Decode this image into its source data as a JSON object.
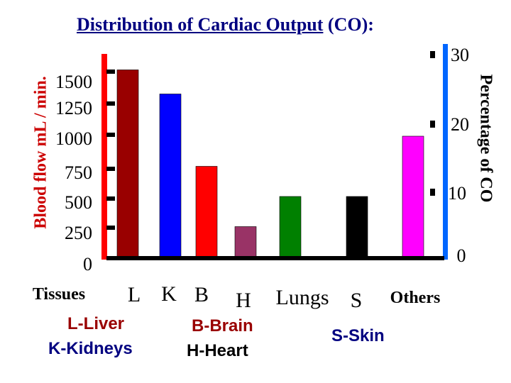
{
  "chart_data": {
    "type": "bar",
    "title_main": "Distribution of Cardiac Output",
    "title_suffix": " (CO):",
    "ylabel_left": "Blood flow mL / min.",
    "ylabel_right": "Percentage of CO",
    "x_axis_label": "Tissues",
    "categories": [
      "L",
      "K",
      "B",
      "H",
      "Lungs",
      "S",
      "Others"
    ],
    "left_ticks": [
      "0",
      "250",
      "500",
      "750",
      "1000",
      "1250",
      "1500"
    ],
    "right_ticks": [
      "0",
      "10",
      "20",
      "30"
    ],
    "right_ylim": [
      0,
      30
    ],
    "bars": [
      {
        "tissue": "L",
        "value": 1550,
        "color": "#990000"
      },
      {
        "tissue": "K",
        "value": 1350,
        "color": "#0000ff"
      },
      {
        "tissue": "B",
        "value": 750,
        "color": "#ff0000"
      },
      {
        "tissue": "H",
        "value": 250,
        "color": "#993366"
      },
      {
        "tissue": "",
        "value": 500,
        "color": "#008000"
      },
      {
        "tissue": "S",
        "value": 500,
        "color": "#000000"
      },
      {
        "tissue": "Others",
        "value": 1000,
        "color": "#ff00ff"
      }
    ],
    "axis_colors": {
      "left": "#ff0000",
      "right": "#0066ff",
      "base": "#000000"
    }
  },
  "legend": {
    "liver": "L-Liver",
    "kidneys": "K-Kidneys",
    "brain": "B-Brain",
    "heart": "H-Heart",
    "skin": "S-Skin"
  }
}
